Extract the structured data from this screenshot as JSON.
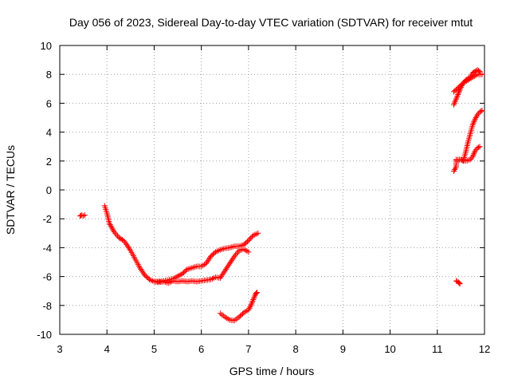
{
  "chart_data": {
    "type": "scatter",
    "title": "Day 056 of 2023, Sidereal Day-to-day VTEC variation (SDTVAR) for receiver mtut",
    "xlabel": "GPS time / hours",
    "ylabel": "SDTVAR / TECUs",
    "xlim": [
      3,
      12
    ],
    "ylim": [
      -10,
      10
    ],
    "x_ticks": [
      "3",
      "4",
      "5",
      "6",
      "7",
      "8",
      "9",
      "10",
      "11",
      "12"
    ],
    "y_ticks": [
      "-10",
      "-8",
      "-6",
      "-4",
      "-2",
      "0",
      "2",
      "4",
      "6",
      "8",
      "10"
    ],
    "grid": true,
    "marker": "plus",
    "color": "#ff0000",
    "series": [
      {
        "segments": [
          [
            [
              3.43,
              -1.8
            ],
            [
              3.47,
              -1.75
            ],
            [
              3.5,
              -1.8
            ],
            [
              3.53,
              -1.75
            ]
          ],
          [
            [
              3.95,
              -1.1
            ],
            [
              4.0,
              -1.6
            ],
            [
              4.05,
              -2.3
            ],
            [
              4.1,
              -2.6
            ],
            [
              4.15,
              -2.9
            ],
            [
              4.2,
              -3.1
            ],
            [
              4.25,
              -3.3
            ],
            [
              4.3,
              -3.4
            ],
            [
              4.35,
              -3.5
            ],
            [
              4.4,
              -3.7
            ],
            [
              4.5,
              -4.2
            ],
            [
              4.6,
              -4.8
            ],
            [
              4.7,
              -5.4
            ],
            [
              4.8,
              -5.9
            ],
            [
              4.9,
              -6.2
            ],
            [
              5.0,
              -6.35
            ],
            [
              5.1,
              -6.4
            ],
            [
              5.2,
              -6.35
            ],
            [
              5.3,
              -6.45
            ],
            [
              5.4,
              -6.3
            ],
            [
              5.5,
              -6.35
            ],
            [
              5.6,
              -6.3
            ],
            [
              5.7,
              -6.35
            ],
            [
              5.8,
              -6.3
            ],
            [
              5.9,
              -6.35
            ],
            [
              6.0,
              -6.3
            ],
            [
              6.1,
              -6.25
            ],
            [
              6.2,
              -6.2
            ],
            [
              6.3,
              -6.05
            ],
            [
              6.4,
              -6.1
            ],
            [
              6.5,
              -5.6
            ],
            [
              6.6,
              -5.1
            ],
            [
              6.7,
              -4.6
            ],
            [
              6.8,
              -4.2
            ],
            [
              6.9,
              -4.1
            ],
            [
              7.0,
              -4.3
            ]
          ],
          [
            [
              6.4,
              -8.55
            ],
            [
              6.5,
              -8.8
            ],
            [
              6.6,
              -9.0
            ],
            [
              6.7,
              -9.05
            ],
            [
              6.8,
              -8.8
            ],
            [
              6.9,
              -8.5
            ],
            [
              7.0,
              -8.3
            ],
            [
              7.05,
              -8.0
            ],
            [
              7.1,
              -7.6
            ],
            [
              7.15,
              -7.2
            ],
            [
              7.18,
              -7.1
            ]
          ],
          [
            [
              5.0,
              -6.35
            ],
            [
              5.2,
              -6.3
            ],
            [
              5.4,
              -6.15
            ],
            [
              5.6,
              -5.8
            ],
            [
              5.7,
              -5.5
            ],
            [
              5.8,
              -5.4
            ],
            [
              5.9,
              -5.3
            ],
            [
              6.0,
              -5.3
            ],
            [
              6.1,
              -5.1
            ],
            [
              6.2,
              -4.6
            ],
            [
              6.3,
              -4.3
            ],
            [
              6.4,
              -4.15
            ],
            [
              6.5,
              -4.05
            ],
            [
              6.6,
              -4.0
            ],
            [
              6.7,
              -3.9
            ],
            [
              6.8,
              -3.9
            ],
            [
              6.9,
              -3.8
            ],
            [
              7.0,
              -3.5
            ],
            [
              7.1,
              -3.15
            ],
            [
              7.2,
              -3.0
            ]
          ],
          [
            [
              11.4,
              -6.3
            ],
            [
              11.45,
              -6.4
            ],
            [
              11.48,
              -6.5
            ]
          ],
          [
            [
              11.35,
              1.3
            ],
            [
              11.4,
              1.6
            ],
            [
              11.4,
              2.05
            ],
            [
              11.5,
              2.1
            ],
            [
              11.55,
              2.0
            ],
            [
              11.6,
              2.6
            ],
            [
              11.65,
              3.3
            ],
            [
              11.7,
              3.9
            ],
            [
              11.75,
              4.5
            ],
            [
              11.8,
              4.9
            ],
            [
              11.85,
              5.2
            ],
            [
              11.9,
              5.4
            ],
            [
              11.95,
              5.5
            ]
          ],
          [
            [
              11.4,
              2.1
            ],
            [
              11.5,
              2.1
            ],
            [
              11.6,
              2.0
            ],
            [
              11.7,
              2.1
            ],
            [
              11.75,
              2.3
            ],
            [
              11.8,
              2.7
            ],
            [
              11.85,
              2.9
            ],
            [
              11.9,
              3.0
            ]
          ],
          [
            [
              11.35,
              5.9
            ],
            [
              11.4,
              6.3
            ],
            [
              11.45,
              6.7
            ],
            [
              11.5,
              7.1
            ],
            [
              11.55,
              7.4
            ],
            [
              11.6,
              7.6
            ],
            [
              11.65,
              7.7
            ],
            [
              11.7,
              7.8
            ],
            [
              11.75,
              8.1
            ],
            [
              11.8,
              8.2
            ],
            [
              11.85,
              8.3
            ],
            [
              11.9,
              8.2
            ]
          ],
          [
            [
              11.35,
              6.8
            ],
            [
              11.45,
              7.1
            ],
            [
              11.55,
              7.4
            ],
            [
              11.65,
              7.6
            ],
            [
              11.75,
              7.8
            ],
            [
              11.85,
              8.0
            ],
            [
              11.95,
              8.0
            ]
          ]
        ]
      }
    ]
  }
}
